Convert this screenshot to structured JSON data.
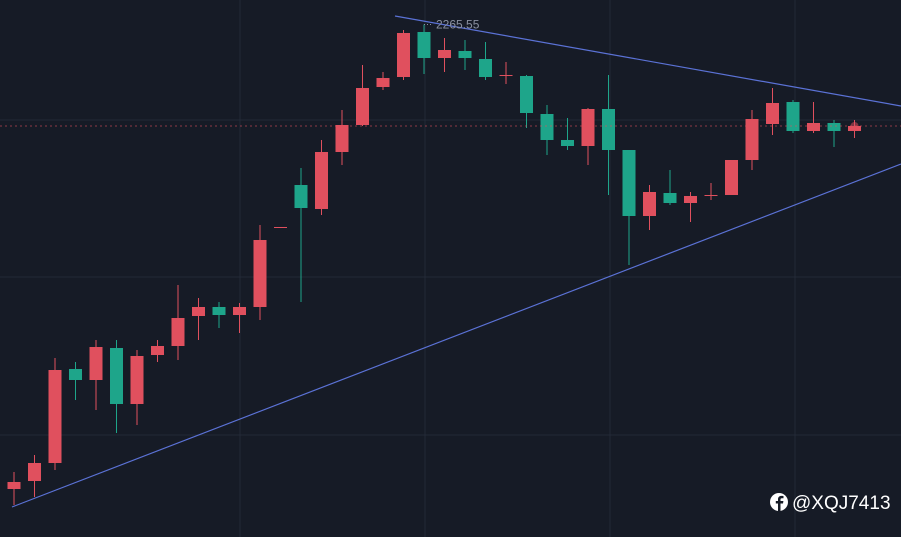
{
  "chart_data": {
    "type": "candlestick",
    "open": [
      1801,
      1809,
      1827,
      1921,
      1910,
      1942,
      1886,
      1935,
      1944,
      1974,
      1983,
      1975,
      1983,
      2062,
      2105,
      2081,
      2138,
      2165,
      2203,
      2213,
      2258,
      2232,
      2239,
      2231,
      2214,
      2214,
      2176,
      2150,
      2144,
      2181,
      2140,
      2074,
      2097,
      2087,
      2094,
      2095,
      2130,
      2166,
      2188,
      2159,
      2167,
      2159
    ],
    "high": [
      1818,
      1835,
      1932,
      1928,
      1950,
      1950,
      1940,
      1950,
      2005,
      1992,
      1988,
      1987,
      2065,
      2063,
      2122,
      2150,
      2180,
      2225,
      2218,
      2260,
      2265.55,
      2252,
      2250,
      2248,
      2228,
      2215,
      2185,
      2172,
      2182,
      2215,
      2140,
      2105,
      2120,
      2098,
      2107,
      2130,
      2180,
      2202,
      2190,
      2188,
      2170,
      2170
    ],
    "low": [
      1785,
      1793,
      1820,
      1890,
      1880,
      1857,
      1865,
      1928,
      1930,
      1950,
      1962,
      1957,
      1970,
      2062,
      1988,
      2075,
      2125,
      2164,
      2200,
      2210,
      2216,
      2218,
      2220,
      2210,
      2206,
      2162,
      2135,
      2140,
      2125,
      2095,
      2025,
      2060,
      2085,
      2068,
      2090,
      2095,
      2120,
      2155,
      2157,
      2157,
      2143,
      2152
    ],
    "close": [
      1808,
      1827,
      1920,
      1910,
      1943,
      1886,
      1934,
      1944,
      1972,
      1983,
      1975,
      1983,
      2050,
      2063,
      2082,
      2138,
      2165,
      2202,
      2212,
      2257,
      2232,
      2240,
      2232,
      2213,
      2215,
      2177,
      2150,
      2144,
      2181,
      2140,
      2074,
      2098,
      2087,
      2094,
      2095,
      2130,
      2171,
      2187,
      2159,
      2167,
      2159,
      2164
    ],
    "up_color": "#e0505e",
    "down_color": "#1ea58a",
    "ylim": [
      1753,
      2290
    ]
  },
  "watermark": "@XQJ7413"
}
